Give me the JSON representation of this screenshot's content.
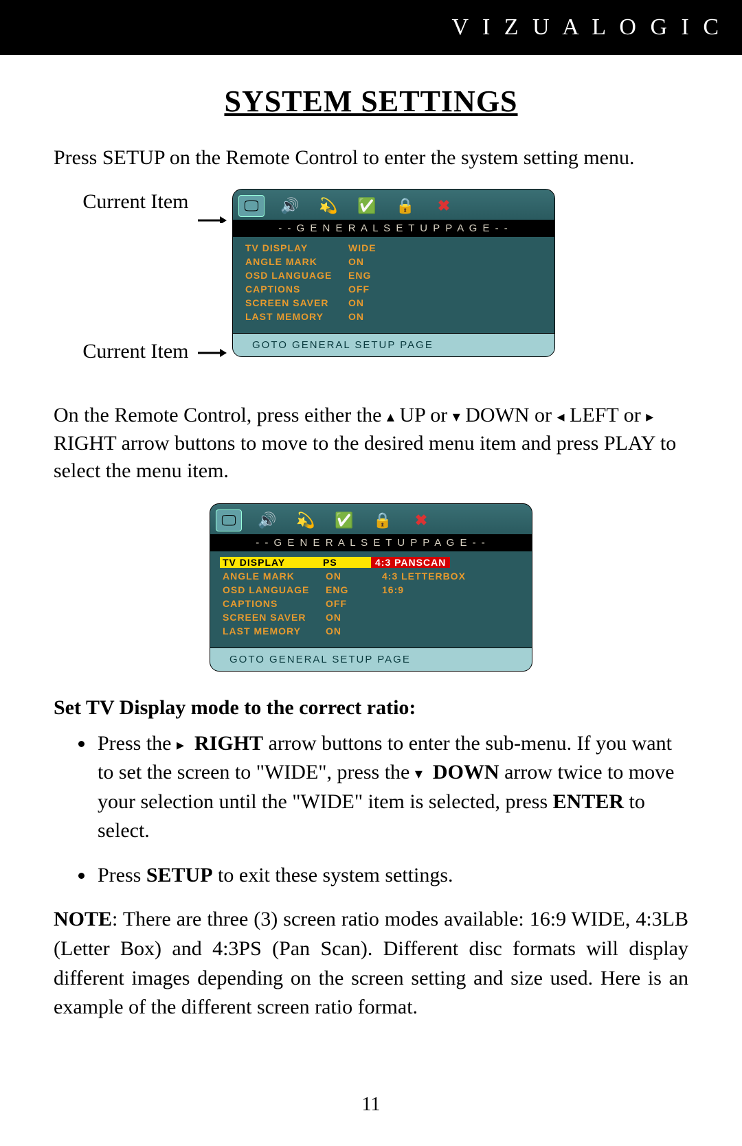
{
  "brand": "V I Z U A  L O G I C",
  "title": "SYSTEM SETTINGS",
  "intro": "Press SETUP on the Remote Control to enter the system setting menu.",
  "label_current_item": "Current Item",
  "osd": {
    "header": "- - G E N E R A L   S E T U P   P A G E - -",
    "footer": "GOTO GENERAL SETUP PAGE",
    "colors": {
      "panel_bg": "#2a5a5f",
      "header_bg": "#000000",
      "header_fg": "#d9d2c2",
      "label_fg": "#e69a2e",
      "footer_bg": "#a3d0d3",
      "footer_fg": "#0a3b3f",
      "highlight_bg": "#ffe600",
      "highlight_fg": "#000000",
      "option_sel_bg": "#d40000",
      "option_sel_fg": "#ffffff",
      "tab_active_bg": "#62a0a6"
    },
    "tabs": [
      "display-icon",
      "audio-icon",
      "dolby-icon",
      "video-icon",
      "lock-icon",
      "close-icon"
    ],
    "screen1_rows": [
      {
        "k": "TV DISPLAY",
        "v": "WIDE"
      },
      {
        "k": "ANGLE MARK",
        "v": "ON"
      },
      {
        "k": "OSD LANGUAGE",
        "v": "ENG"
      },
      {
        "k": "CAPTIONS",
        "v": "OFF"
      },
      {
        "k": "SCREEN SAVER",
        "v": "ON"
      },
      {
        "k": "LAST MEMORY",
        "v": "ON"
      }
    ],
    "screen2_rows": [
      {
        "k": "TV DISPLAY",
        "v": "PS",
        "sel": true,
        "opts": [
          {
            "t": "4:3 PANSCAN",
            "sel": true
          },
          {
            "t": "4:3 LETTERBOX"
          },
          {
            "t": "16:9"
          }
        ]
      },
      {
        "k": "ANGLE MARK",
        "v": "ON"
      },
      {
        "k": "OSD LANGUAGE",
        "v": "ENG"
      },
      {
        "k": "CAPTIONS",
        "v": "OFF"
      },
      {
        "k": "SCREEN SAVER",
        "v": "ON"
      },
      {
        "k": "LAST MEMORY",
        "v": "ON"
      }
    ]
  },
  "nav": {
    "pre": "On the Remote Control, press either the ",
    "up": " UP or ",
    "down": " DOWN or ",
    "left": " LEFT or ",
    "right_tail": " RIGHT arrow buttons to move to the desired menu item and press PLAY to select the menu item."
  },
  "sub_heading": "Set TV Display mode to the correct ratio:",
  "bullets": {
    "b1_a": "Press the  ",
    "b1_right": "RIGHT",
    "b1_b": " arrow buttons to enter the sub-menu.  If you want to set the screen to \"WIDE\", press the  ",
    "b1_down": "DOWN",
    "b1_c": " arrow twice to move your selection until the \"WIDE\" item is selected, press ",
    "b1_enter": "ENTER",
    "b1_d": " to select.",
    "b2_a": "Press ",
    "b2_setup": "SETUP",
    "b2_b": " to exit these system settings."
  },
  "note": {
    "label": "NOTE",
    "text": ": There are three (3) screen ratio modes available: 16:9 WIDE, 4:3LB (Letter Box) and 4:3PS (Pan Scan).  Different disc formats will display different images depending on the screen setting and size used.  Here is an example of the different screen ratio format."
  },
  "page_number": "11",
  "glyphs": {
    "up": "▴",
    "down": "▾",
    "left": "◂",
    "right": "▸"
  }
}
